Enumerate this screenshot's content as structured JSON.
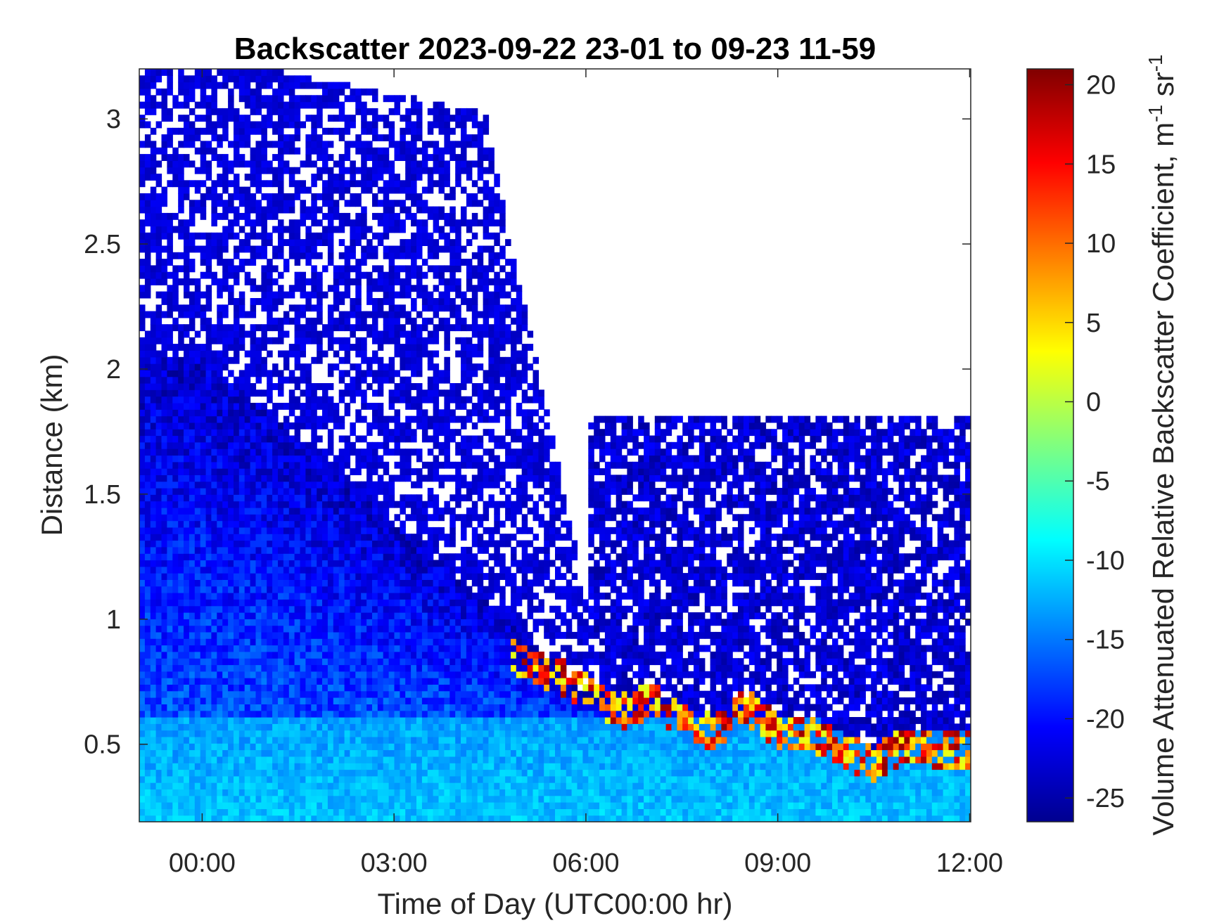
{
  "chart_data": {
    "type": "heatmap",
    "title": "Backscatter 2023-09-22 23-01 to 09-23 11-59",
    "xlabel": "Time of Day (UTC00:00 hr)",
    "ylabel": "Distance (km)",
    "colorbar_label": "Volume Attenuated Relative Backscatter Coefficient, m",
    "colorbar_label_sup1": "-1",
    "colorbar_label_mid": " sr",
    "colorbar_label_sup2": "-1",
    "x_range_hours": [
      -1,
      12
    ],
    "xlim": [
      -0.983,
      12.017
    ],
    "ylim": [
      0.19,
      3.2
    ],
    "clim": [
      -26.5,
      21
    ],
    "colormap": "jet",
    "grid": false,
    "x_ticks": [
      {
        "value": 0,
        "label": "00:00"
      },
      {
        "value": 3,
        "label": "03:00"
      },
      {
        "value": 6,
        "label": "06:00"
      },
      {
        "value": 9,
        "label": "09:00"
      },
      {
        "value": 12,
        "label": "12:00"
      }
    ],
    "y_ticks": [
      {
        "value": 0.5,
        "label": "0.5"
      },
      {
        "value": 1,
        "label": "1"
      },
      {
        "value": 1.5,
        "label": "1.5"
      },
      {
        "value": 2,
        "label": "2"
      },
      {
        "value": 2.5,
        "label": "2.5"
      },
      {
        "value": 3,
        "label": "3"
      }
    ],
    "colorbar_ticks": [
      {
        "value": 20,
        "label": "20"
      },
      {
        "value": 15,
        "label": "15"
      },
      {
        "value": 10,
        "label": "10"
      },
      {
        "value": 5,
        "label": "5"
      },
      {
        "value": 0,
        "label": "0"
      },
      {
        "value": -5,
        "label": "-5"
      },
      {
        "value": -10,
        "label": "-10"
      },
      {
        "value": -15,
        "label": "-15"
      },
      {
        "value": -20,
        "label": "-20"
      },
      {
        "value": -25,
        "label": "-25"
      }
    ],
    "cloud_base_profile": {
      "description": "approximate height (km) of strong backscatter layer vs time (hours)",
      "time": [
        4.9,
        5.5,
        6.0,
        6.5,
        7.0,
        7.5,
        8.0,
        8.5,
        9.0,
        9.5,
        10.0,
        10.5,
        11.0,
        11.5,
        12.0
      ],
      "height": [
        0.85,
        0.78,
        0.72,
        0.62,
        0.68,
        0.6,
        0.55,
        0.65,
        0.55,
        0.55,
        0.48,
        0.42,
        0.5,
        0.48,
        0.48
      ]
    }
  }
}
